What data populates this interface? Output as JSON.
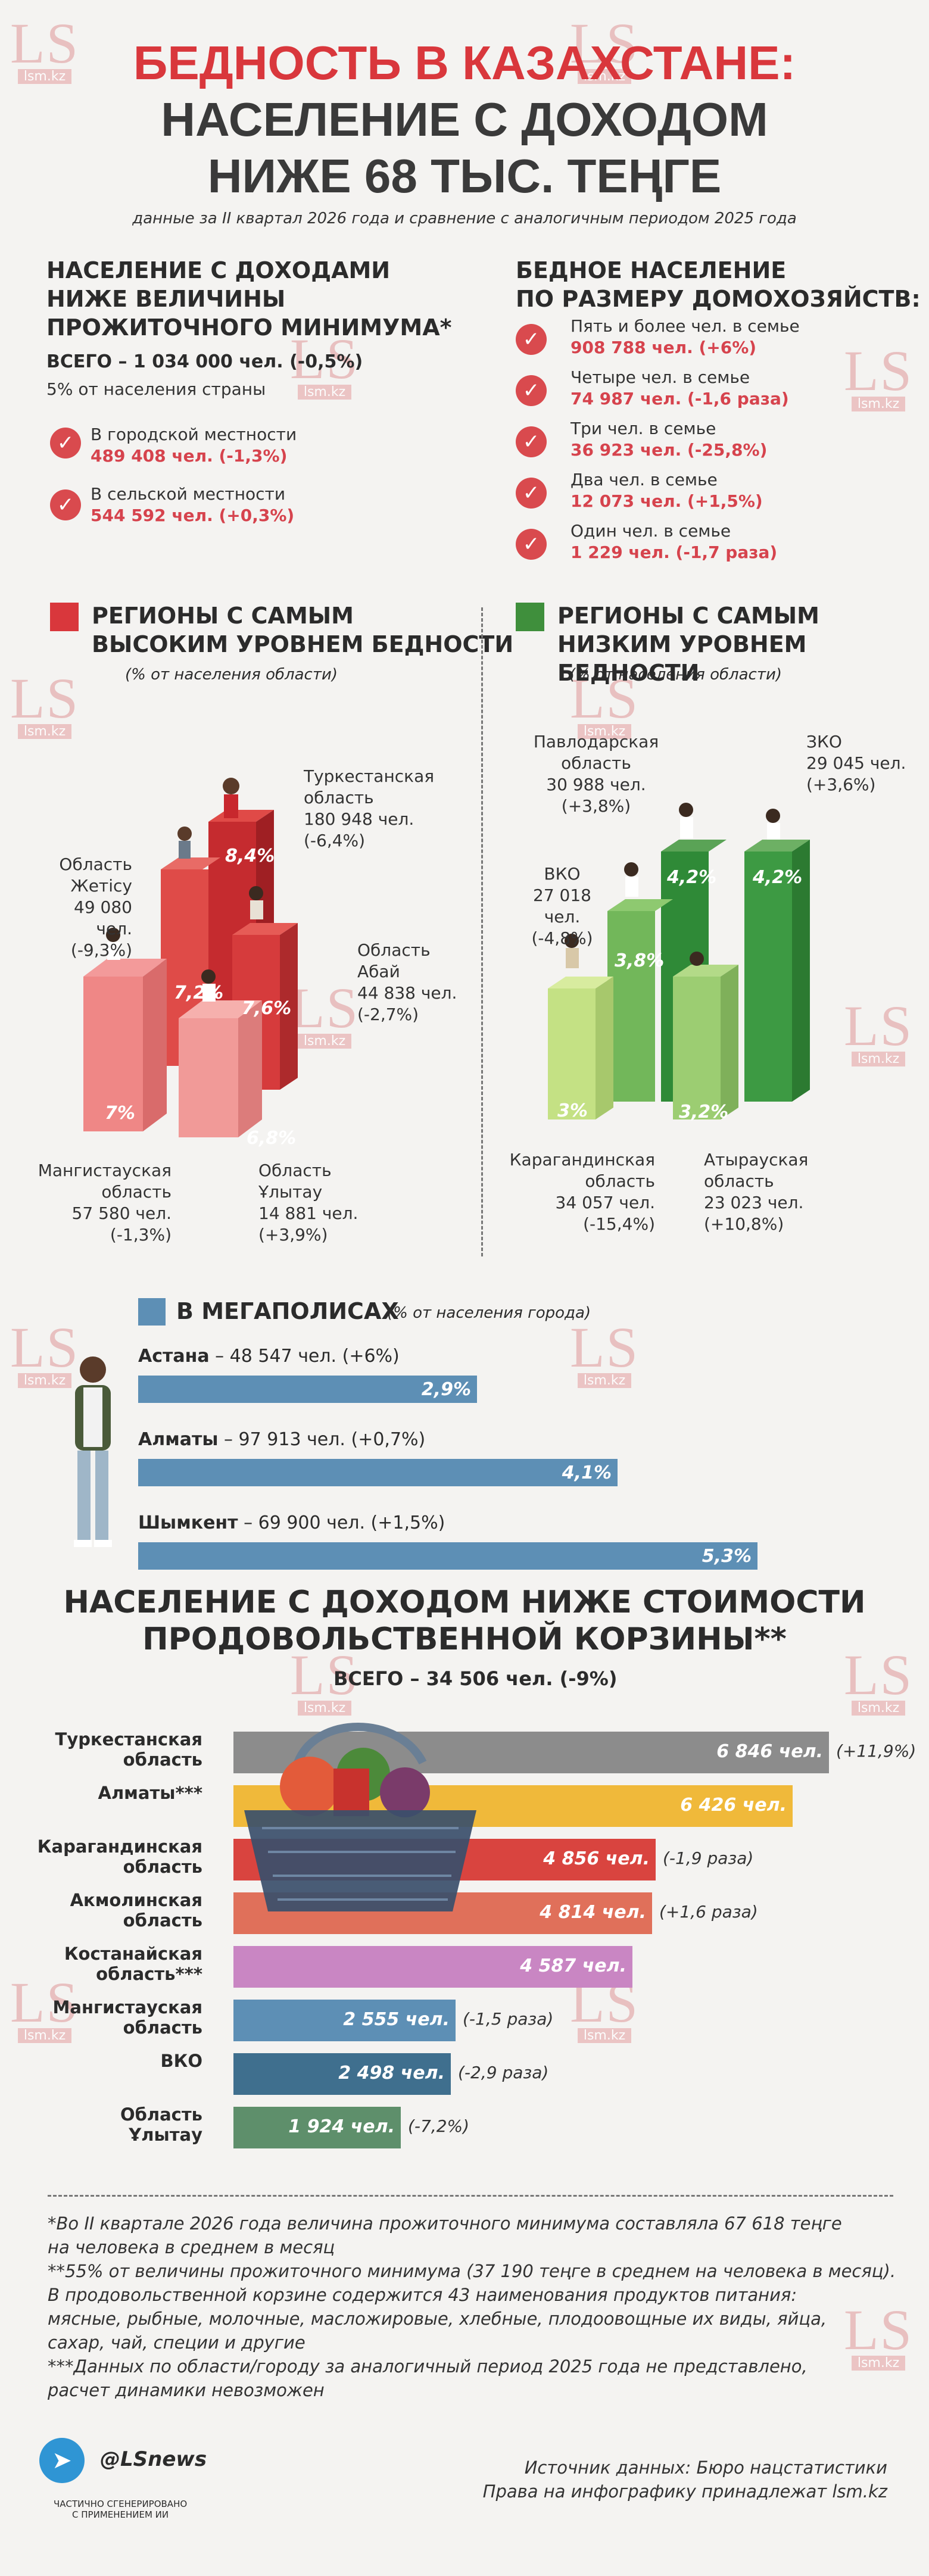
{
  "title": {
    "line1": "БЕДНОСТЬ В КАЗАХСТАНЕ:",
    "line2": "НАСЕЛЕНИЕ С ДОХОДОМ",
    "line3": "НИЖЕ 68 ТЫС. ТЕҢГЕ"
  },
  "subtitle": "данные за II квартал 2026 года и сравнение с аналогичным периодом 2025 года",
  "watermark": {
    "big": "LS",
    "small": "lsm.kz"
  },
  "min_income": {
    "heading": [
      "НАСЕЛЕНИЕ С ДОХОДАМИ",
      "НИЖЕ ВЕЛИЧИНЫ",
      "ПРОЖИТОЧНОГО МИНИМУМА*"
    ],
    "total": "ВСЕГО – 1 034 000 чел. (-0,5%)",
    "share": "5% от населения страны",
    "items": [
      {
        "label": "В городской местности",
        "value": "489 408 чел. (-1,3%)"
      },
      {
        "label": "В сельской местности",
        "value": "544 592 чел. (+0,3%)"
      }
    ]
  },
  "households": {
    "heading": [
      "БЕДНОЕ НАСЕЛЕНИЕ",
      "ПО РАЗМЕРУ ДОМОХОЗЯЙСТВ:"
    ],
    "items": [
      {
        "label": "Пять и более чел. в семье",
        "value": "908 788 чел. (+6%)"
      },
      {
        "label": "Четыре чел. в семье",
        "value": "74 987 чел. (-1,6 раза)"
      },
      {
        "label": "Три чел. в семье",
        "value": "36 923 чел. (-25,8%)"
      },
      {
        "label": "Два чел. в семье",
        "value": "12 073 чел. (+1,5%)"
      },
      {
        "label": "Один чел. в семье",
        "value": "1 229 чел. (-1,7 раза)"
      }
    ]
  },
  "high_regions": {
    "heading": [
      "РЕГИОНЫ С САМЫМ",
      "ВЫСОКИМ УРОВНЕМ БЕДНОСТИ"
    ],
    "note": "(% от населения области)",
    "color": "#d9373c",
    "regions": [
      {
        "name": "Туркестанская\nобласть",
        "count": "180 948 чел.",
        "change": "(-6,4%)",
        "pct": "8,4%"
      },
      {
        "name": "Область\nЖетісу",
        "count": "49 080 чел.",
        "change": "(-9,3%)",
        "pct": "7,2%"
      },
      {
        "name": "Область\nАбай",
        "count": "44 838 чел.",
        "change": "(-2,7%)",
        "pct": "7,6%"
      },
      {
        "name": "Мангистауская\nобласть",
        "count": "57 580 чел.",
        "change": "(-1,3%)",
        "pct": "7%"
      },
      {
        "name": "Область\nҰлытау",
        "count": "14 881 чел.",
        "change": "(+3,9%)",
        "pct": "6,8%"
      }
    ]
  },
  "low_regions": {
    "heading": [
      "РЕГИОНЫ С САМЫМ",
      "НИЗКИМ УРОВНЕМ БЕДНОСТИ"
    ],
    "note": "(% от населения области)",
    "color": "#3f8f3c",
    "regions": [
      {
        "name": "Павлодарская\nобласть",
        "count": "30 988 чел.",
        "change": "(+3,8%)",
        "pct": "4,2%"
      },
      {
        "name": "ЗКО",
        "count": "29 045 чел.",
        "change": "(+3,6%)",
        "pct": "4,2%"
      },
      {
        "name": "ВКО",
        "count": "27 018 чел.",
        "change": "(-4,8%)",
        "pct": "3,8%"
      },
      {
        "name": "Карагандинская\nобласть",
        "count": "34 057 чел.",
        "change": "(-15,4%)",
        "pct": "3%"
      },
      {
        "name": "Атырауская\nобласть",
        "count": "23 023 чел.",
        "change": "(+10,8%)",
        "pct": "3,2%"
      }
    ]
  },
  "megacities": {
    "heading": "В МЕГАПОЛИСАХ",
    "note": "(% от населения города)",
    "color": "#5d8fb5",
    "cities": [
      {
        "name": "Астана",
        "detail": " – 48 547 чел. (+6%)",
        "value": 2.9,
        "label": "2,9%"
      },
      {
        "name": "Алматы",
        "detail": " – 97 913 чел. (+0,7%)",
        "value": 4.1,
        "label": "4,1%"
      },
      {
        "name": "Шымкент",
        "detail": " – 69 900 чел. (+1,5%)",
        "value": 5.3,
        "label": "5,3%"
      }
    ]
  },
  "food_basket": {
    "heading": [
      "НАСЕЛЕНИЕ С ДОХОДОМ НИЖЕ СТОИМОСТИ",
      "ПРОДОВОЛЬСТВЕННОЙ КОРЗИНЫ**"
    ],
    "total": "ВСЕГО – 34 506 чел. (-9%)"
  },
  "chart_data": [
    {
      "type": "bar",
      "title": "В МЕГАПОЛИСАХ",
      "categories": [
        "Астана",
        "Алматы",
        "Шымкент"
      ],
      "values": [
        2.9,
        4.1,
        5.3
      ]
    },
    {
      "type": "bar",
      "title": "НАСЕЛЕНИЕ С ДОХОДОМ НИЖЕ СТОИМОСТИ ПРОДОВОЛЬСТВЕННОЙ КОРЗИНЫ**",
      "categories": [
        "Туркестанская область",
        "Алматы***",
        "Карагандинская область",
        "Акмолинская область",
        "Костанайская область***",
        "Мангистауская область",
        "ВКО",
        "Область Ұлытау"
      ],
      "values": [
        6846,
        6426,
        4856,
        4814,
        4587,
        2555,
        2498,
        1924
      ],
      "labels": [
        "6 846 чел.",
        "6 426 чел.",
        "4 856 чел.",
        "4 814 чел.",
        "4 587 чел.",
        "2 555 чел.",
        "2 498 чел.",
        "1 924 чел."
      ],
      "changes": [
        "(+11,9%)",
        "",
        "(-1,9 раза)",
        "(+1,6 раза)",
        "",
        "(-1,5 раза)",
        "(-2,9 раза)",
        "(-7,2%)"
      ],
      "colors": [
        "#8c8c8c",
        "#f0b93a",
        "#d9443f",
        "#e0705a",
        "#c986c3",
        "#5d8fb5",
        "#3f6f8e",
        "#5e8f6b"
      ],
      "names": [
        "Туркестанская\nобласть",
        "Алматы***",
        "Карагандинская\nобласть",
        "Акмолинская\nобласть",
        "Костанайская\nобласть***",
        "Мангистауская\nобласть",
        "ВКО",
        "Область\nҰлытау"
      ]
    }
  ],
  "footnotes": [
    "*Во II квартале 2026 года величина прожиточного минимума составляла 67 618 теңге",
    "на человека в среднем в месяц",
    "**55% от величины прожиточного минимума (37 190 теңге в среднем на человека в месяц).",
    "В продовольственной корзине содержится 43 наименования продуктов питания:",
    "мясные, рыбные, молочные, масложировые, хлебные, плодоовощные их виды, яйца,",
    "сахар, чай, специи и другие",
    "***Данных по области/городу за аналогичный период 2025 года не представлено,",
    "расчет динамики невозможен"
  ],
  "footer": {
    "social": "@LSnews",
    "ai_note": [
      "ЧАСТИЧНО СГЕНЕРИРОВАНО",
      "С ПРИМЕНЕНИЕМ ИИ"
    ],
    "source": "Источник данных: Бюро нацстатистики",
    "rights": "Права на инфографику принадлежат lsm.kz"
  }
}
